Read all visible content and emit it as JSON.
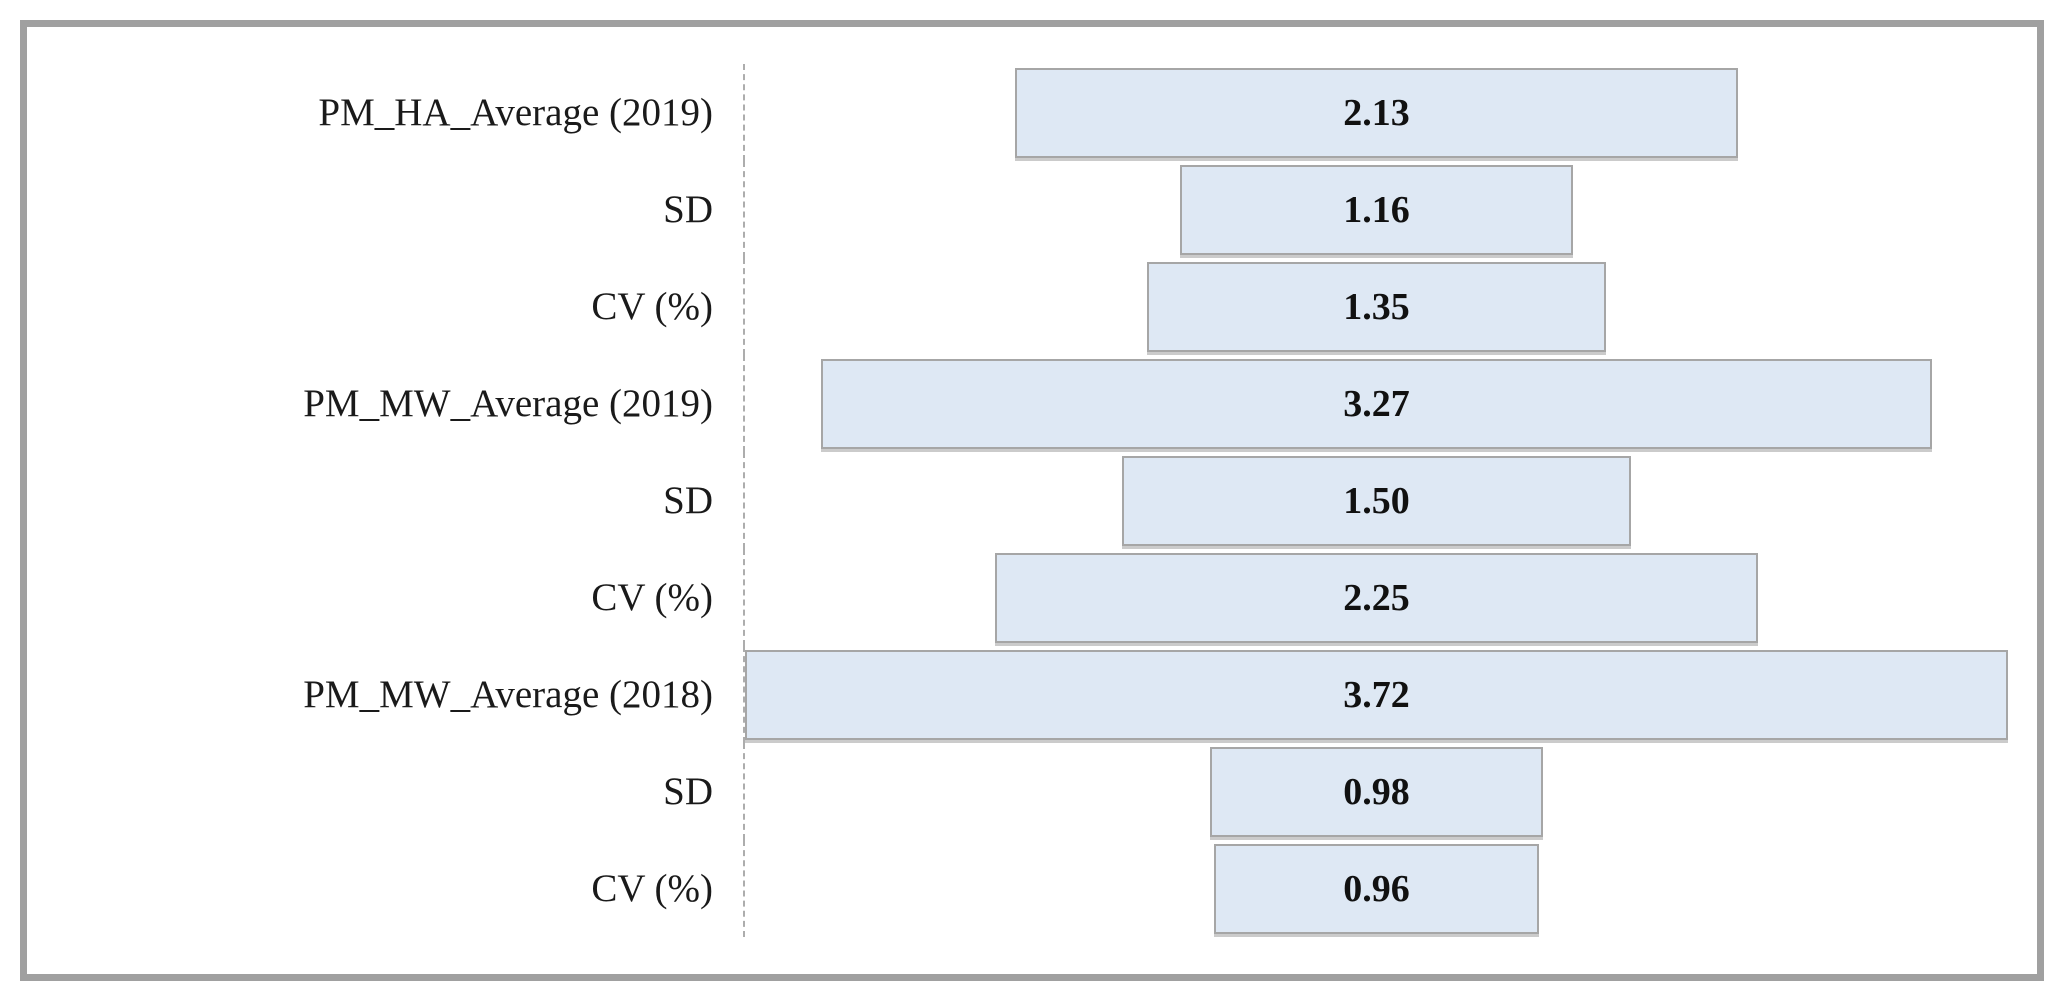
{
  "chart_data": {
    "type": "bar",
    "subtype": "horizontal-centered-funnel",
    "title": "",
    "xlabel": "",
    "ylabel": "",
    "grid": false,
    "legend": "none",
    "axis_line": "dashed-vertical-left",
    "xlim": [
      0,
      3.72
    ],
    "categories": [
      "PM_HA_Average (2019)",
      "SD",
      "CV (%)",
      "PM_MW_Average (2019)",
      "SD",
      "CV (%)",
      "PM_MW_Average (2018)",
      "SD",
      "CV (%)"
    ],
    "values": [
      2.13,
      1.16,
      1.35,
      3.27,
      1.5,
      2.25,
      3.72,
      0.98,
      0.96
    ],
    "value_labels": [
      "2.13",
      "1.16",
      "1.35",
      "3.27",
      "1.50",
      "2.25",
      "3.72",
      "0.98",
      "0.96"
    ]
  },
  "colors": {
    "bar_fill": "#dee8f4",
    "bar_border": "#a6a6a6",
    "frame_border": "#a0a0a0",
    "axis_line": "#adadad",
    "label_text": "#1a1a1a",
    "value_text": "#111111",
    "background": "#ffffff"
  }
}
